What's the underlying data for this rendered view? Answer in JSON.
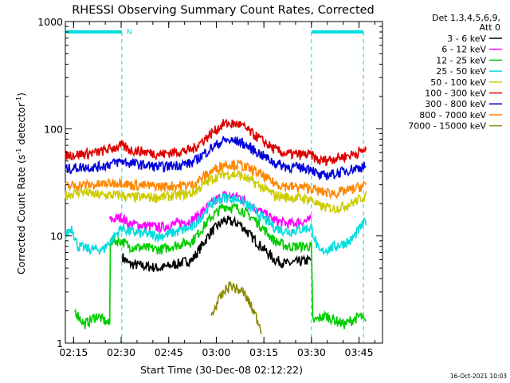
{
  "chart_data": {
    "type": "line",
    "title": "RHESSI Observing Summary Count Rates, Corrected",
    "xlabel": "Start Time (30-Dec-08 02:12:22)",
    "ylabel_main": "Corrected Count Rate (s",
    "ylabel_sup1": "-1",
    "ylabel_mid": " detector",
    "ylabel_sup2": "-1",
    "ylabel_end": ")",
    "yscale": "log",
    "ylim": [
      1,
      1000
    ],
    "xlim_minutes": [
      0,
      100
    ],
    "x_ticks": [
      {
        "label": "02:15",
        "minutes": 2.6
      },
      {
        "label": "02:30",
        "minutes": 17.6
      },
      {
        "label": "02:45",
        "minutes": 32.6
      },
      {
        "label": "03:00",
        "minutes": 47.6
      },
      {
        "label": "03:15",
        "minutes": 62.6
      },
      {
        "label": "03:30",
        "minutes": 77.6
      },
      {
        "label": "03:45",
        "minutes": 92.6
      }
    ],
    "y_ticks": [
      {
        "label": "1",
        "value": 1
      },
      {
        "label": "10",
        "value": 10
      },
      {
        "label": "100",
        "value": 100
      },
      {
        "label": "1000",
        "value": 1000
      }
    ],
    "legend_header": [
      "Det 1,3,4,5,6,9,",
      "Att 0"
    ],
    "legend_placement": "right",
    "night_marker_label": "N",
    "night_bars_minutes": [
      [
        0,
        17.8
      ],
      [
        77.6,
        94
      ]
    ],
    "night_level": 800,
    "night_dashed_lines_minutes": [
      17.8,
      77.6,
      94
    ],
    "series": [
      {
        "name": "3 - 6 keV",
        "color": "#000000",
        "t": [
          14,
          17.8,
          20,
          30,
          40,
          46,
          50,
          55,
          60,
          66,
          70,
          77.6
        ],
        "values": [
          null,
          6.5,
          5.5,
          5,
          6,
          11,
          14,
          13,
          9,
          6,
          5.5,
          6
        ]
      },
      {
        "name": "6 - 12 keV",
        "color": "#ff00ff",
        "t": [
          14,
          17.8,
          20,
          30,
          40,
          46,
          50,
          55,
          60,
          66,
          70,
          77.6
        ],
        "values": [
          14,
          15,
          13,
          12,
          14,
          20,
          24,
          23,
          18,
          14,
          13,
          14
        ]
      },
      {
        "name": "12 - 25 keV",
        "color": "#00cc00",
        "t": [
          0,
          3,
          6,
          10,
          14,
          14.1,
          17.8,
          20,
          30,
          40,
          46,
          50,
          55,
          60,
          66,
          70,
          77.6,
          78,
          82,
          88,
          93,
          95
        ],
        "values": [
          null,
          2,
          1.5,
          1.8,
          1.5,
          9,
          9,
          8,
          7.5,
          9,
          15,
          19,
          18,
          14,
          9,
          8,
          8,
          1.6,
          1.8,
          1.5,
          1.8,
          1.5
        ]
      },
      {
        "name": "25 - 50 keV",
        "color": "#00dddd",
        "t": [
          0,
          2,
          4,
          8,
          12,
          17.8,
          20,
          30,
          40,
          46,
          50,
          55,
          60,
          66,
          70,
          77.6,
          80,
          85,
          90,
          93,
          95
        ],
        "values": [
          10,
          12,
          8,
          7.5,
          7.5,
          12,
          11,
          10,
          12,
          20,
          23,
          22,
          17,
          12,
          11,
          12,
          7,
          8,
          9,
          12,
          14
        ]
      },
      {
        "name": "50 - 100 keV",
        "color": "#cccc00",
        "t": [
          0,
          5,
          10,
          17.8,
          20,
          30,
          40,
          46,
          50,
          55,
          60,
          66,
          70,
          77.6,
          80,
          85,
          90,
          95
        ],
        "values": [
          24,
          26,
          24,
          24,
          23,
          23,
          25,
          34,
          38,
          37,
          31,
          24,
          23,
          22,
          19,
          18,
          20,
          24
        ]
      },
      {
        "name": "100 - 300 keV",
        "color": "#dd0000",
        "t": [
          0,
          5,
          10,
          17.8,
          20,
          30,
          40,
          46,
          50,
          55,
          60,
          66,
          70,
          77.6,
          80,
          85,
          90,
          95
        ],
        "values": [
          57,
          58,
          60,
          70,
          64,
          58,
          64,
          90,
          112,
          110,
          86,
          64,
          58,
          57,
          50,
          53,
          57,
          64
        ]
      },
      {
        "name": "300 - 800 keV",
        "color": "#0000dd",
        "t": [
          0,
          5,
          10,
          17.8,
          20,
          30,
          40,
          46,
          50,
          55,
          60,
          66,
          70,
          77.6,
          80,
          85,
          90,
          95
        ],
        "values": [
          42,
          44,
          44,
          50,
          48,
          44,
          48,
          66,
          78,
          76,
          62,
          48,
          44,
          43,
          36,
          38,
          42,
          45
        ]
      },
      {
        "name": "800 - 7000 keV",
        "color": "#ff8800",
        "t": [
          0,
          5,
          10,
          17.8,
          20,
          30,
          40,
          46,
          50,
          55,
          60,
          66,
          70,
          77.6,
          80,
          85,
          90,
          95
        ],
        "values": [
          29,
          30,
          30,
          32,
          30,
          29,
          30,
          40,
          47,
          46,
          40,
          31,
          29,
          28,
          26,
          25,
          27,
          30
        ]
      },
      {
        "name": "7000 - 15000 keV",
        "color": "#888800",
        "t": [
          44,
          46,
          48,
          50,
          52,
          54,
          56,
          58,
          60,
          62,
          64
        ],
        "values": [
          null,
          1.8,
          2.4,
          3,
          3.5,
          3.2,
          3,
          2.4,
          1.8,
          1.3,
          null
        ]
      }
    ],
    "timestamp": "16-Oct-2021 10:03"
  }
}
